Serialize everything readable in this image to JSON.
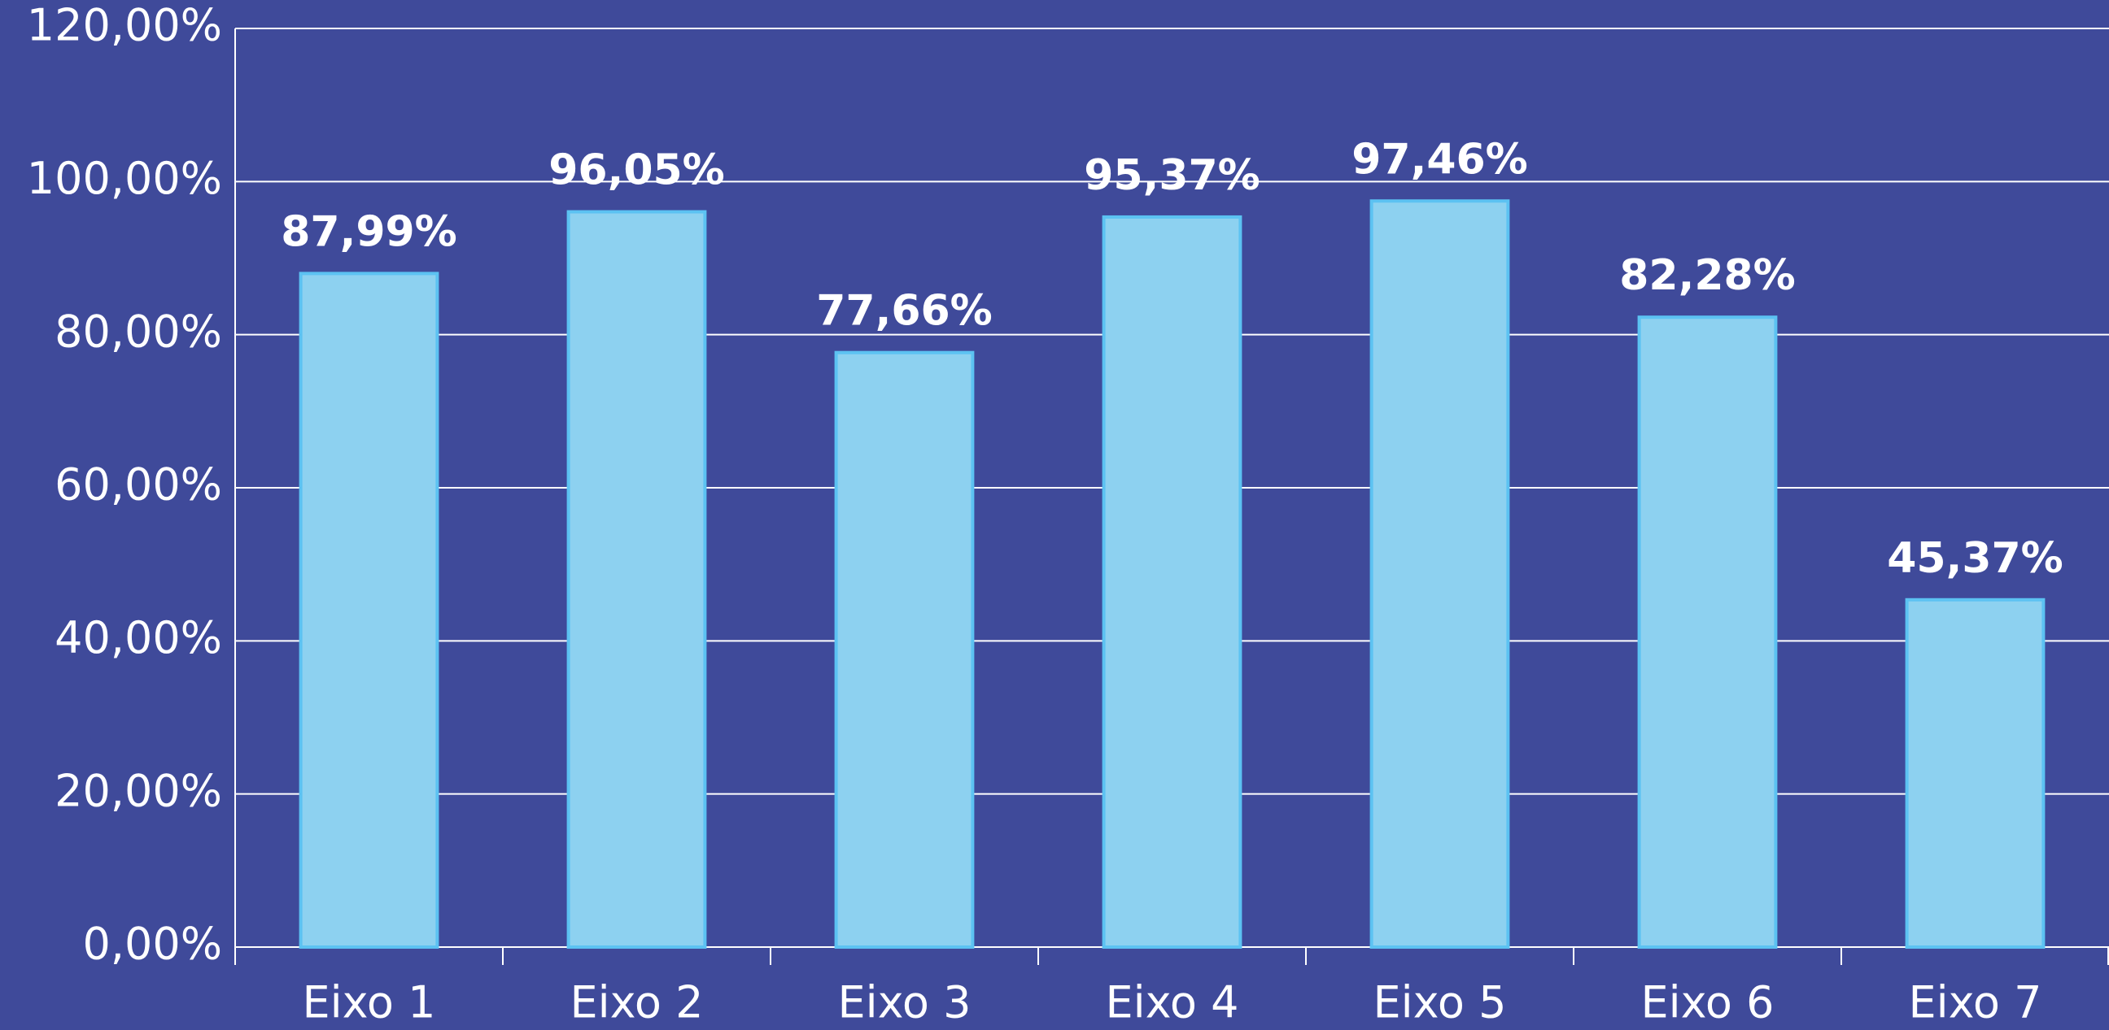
{
  "chart_data": {
    "type": "bar",
    "categories": [
      "Eixo 1",
      "Eixo 2",
      "Eixo 3",
      "Eixo 4",
      "Eixo 5",
      "Eixo 6",
      "Eixo 7"
    ],
    "values": [
      87.99,
      96.05,
      77.66,
      95.37,
      97.46,
      82.28,
      45.37
    ],
    "value_labels": [
      "87,99%",
      "96,05%",
      "77,66%",
      "95,37%",
      "97,46%",
      "82,28%",
      "45,37%"
    ],
    "color": "#8dd1f0",
    "ylim": [
      0,
      120
    ],
    "yticks": [
      {
        "value": 0,
        "label": "0,00%"
      },
      {
        "value": 20,
        "label": "20,00%"
      },
      {
        "value": 40,
        "label": "40,00%"
      },
      {
        "value": 60,
        "label": "60,00%"
      },
      {
        "value": 80,
        "label": "80,00%"
      },
      {
        "value": 100,
        "label": "100,00%"
      },
      {
        "value": 120,
        "label": "120,00%"
      }
    ],
    "grid": true
  }
}
